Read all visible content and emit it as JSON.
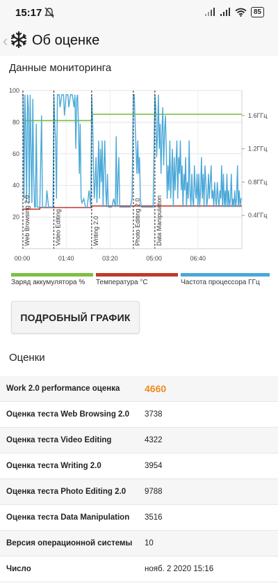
{
  "status": {
    "time": "15:17",
    "battery": "85"
  },
  "app": {
    "title": "Об оценке"
  },
  "monitoring": {
    "title": "Данные мониторинга",
    "markers": [
      "Web Browsing 2.0",
      "Video Editing",
      "Writing 2.0",
      "Photo Editing 2.0",
      "Data Manipulation"
    ]
  },
  "chart_data": {
    "type": "line",
    "x_label_ticks": [
      "00:00",
      "01:40",
      "03:20",
      "05:00",
      "06:40"
    ],
    "y_left_ticks": [
      "20",
      "40",
      "60",
      "80",
      "100"
    ],
    "y_right_ticks": [
      "0.4ГГц",
      "0.8ГГц",
      "1.2ГГц",
      "1.6ГГц"
    ],
    "y_left_range": [
      0,
      100
    ],
    "y_right_range": [
      0,
      1.9
    ],
    "x_range_seconds": [
      0,
      500
    ],
    "grid": true,
    "legend_position": "bottom",
    "markers_seconds": [
      0,
      72,
      158,
      253,
      302
    ],
    "series": [
      {
        "name": "Заряд аккумулятора %",
        "color": "#7cc142",
        "axis": "left",
        "points": [
          [
            0,
            81
          ],
          [
            158,
            81
          ],
          [
            158,
            85
          ],
          [
            500,
            85
          ]
        ]
      },
      {
        "name": "Температура °C",
        "color": "#c0392b",
        "axis": "left",
        "points": [
          [
            0,
            25
          ],
          [
            40,
            25
          ],
          [
            40,
            26
          ],
          [
            158,
            26
          ],
          [
            158,
            27
          ],
          [
            500,
            27
          ]
        ]
      },
      {
        "name": "Частота процессора ГГц",
        "color": "#4aa8d8",
        "axis": "right",
        "points": [
          [
            0,
            1.85
          ],
          [
            2,
            1.85
          ],
          [
            4,
            0.6
          ],
          [
            6,
            1.85
          ],
          [
            8,
            1.4
          ],
          [
            10,
            0.55
          ],
          [
            12,
            1.85
          ],
          [
            14,
            1.7
          ],
          [
            16,
            0.55
          ],
          [
            18,
            1.85
          ],
          [
            20,
            1.2
          ],
          [
            22,
            0.55
          ],
          [
            24,
            1.8
          ],
          [
            26,
            0.9
          ],
          [
            28,
            0.5
          ],
          [
            30,
            0.5
          ],
          [
            32,
            1.5
          ],
          [
            34,
            0.5
          ],
          [
            36,
            0.5
          ],
          [
            40,
            0.5
          ],
          [
            44,
            1.6
          ],
          [
            46,
            0.5
          ],
          [
            50,
            0.5
          ],
          [
            54,
            0.5
          ],
          [
            56,
            0.7
          ],
          [
            60,
            0.5
          ],
          [
            66,
            0.5
          ],
          [
            70,
            0.5
          ],
          [
            72,
            1.85
          ],
          [
            74,
            1.5
          ],
          [
            76,
            1.3
          ],
          [
            78,
            0.6
          ],
          [
            80,
            1.85
          ],
          [
            84,
            1.85
          ],
          [
            86,
            1.7
          ],
          [
            90,
            1.85
          ],
          [
            94,
            1.85
          ],
          [
            96,
            1.6
          ],
          [
            100,
            1.85
          ],
          [
            104,
            1.85
          ],
          [
            106,
            1.7
          ],
          [
            110,
            1.85
          ],
          [
            114,
            1.85
          ],
          [
            118,
            1.7
          ],
          [
            120,
            1.85
          ],
          [
            122,
            1.2
          ],
          [
            124,
            1.8
          ],
          [
            126,
            1.85
          ],
          [
            128,
            1.5
          ],
          [
            130,
            0.9
          ],
          [
            132,
            1.5
          ],
          [
            134,
            0.6
          ],
          [
            136,
            0.55
          ],
          [
            140,
            0.6
          ],
          [
            144,
            0.5
          ],
          [
            148,
            0.5
          ],
          [
            152,
            0.7
          ],
          [
            156,
            0.5
          ],
          [
            158,
            1.85
          ],
          [
            160,
            1.6
          ],
          [
            162,
            1.0
          ],
          [
            164,
            0.6
          ],
          [
            166,
            0.8
          ],
          [
            168,
            1.1
          ],
          [
            170,
            0.55
          ],
          [
            172,
            0.9
          ],
          [
            174,
            1.3
          ],
          [
            176,
            0.6
          ],
          [
            178,
            1.2
          ],
          [
            180,
            0.8
          ],
          [
            182,
            1.3
          ],
          [
            184,
            0.5
          ],
          [
            186,
            1.0
          ],
          [
            188,
            1.3
          ],
          [
            190,
            0.7
          ],
          [
            192,
            0.5
          ],
          [
            194,
            0.9
          ],
          [
            196,
            0.5
          ],
          [
            200,
            0.5
          ],
          [
            204,
            0.5
          ],
          [
            208,
            0.6
          ],
          [
            212,
            0.5
          ],
          [
            214,
            1.35
          ],
          [
            216,
            0.5
          ],
          [
            220,
            1.1
          ],
          [
            222,
            0.5
          ],
          [
            226,
            0.5
          ],
          [
            230,
            0.5
          ],
          [
            234,
            0.5
          ],
          [
            238,
            0.5
          ],
          [
            242,
            0.5
          ],
          [
            246,
            0.5
          ],
          [
            250,
            0.6
          ],
          [
            253,
            1.85
          ],
          [
            255,
            1.85
          ],
          [
            257,
            1.5
          ],
          [
            259,
            1.2
          ],
          [
            261,
            0.9
          ],
          [
            263,
            1.3
          ],
          [
            265,
            0.9
          ],
          [
            267,
            1.1
          ],
          [
            269,
            0.6
          ],
          [
            271,
            0.5
          ],
          [
            274,
            0.5
          ],
          [
            278,
            0.5
          ],
          [
            282,
            0.5
          ],
          [
            286,
            0.5
          ],
          [
            290,
            0.5
          ],
          [
            294,
            0.5
          ],
          [
            298,
            0.5
          ],
          [
            302,
            1.85
          ],
          [
            304,
            1.7
          ],
          [
            306,
            1.1
          ],
          [
            308,
            1.4
          ],
          [
            310,
            1.85
          ],
          [
            312,
            1.2
          ],
          [
            314,
            1.5
          ],
          [
            316,
            0.9
          ],
          [
            318,
            1.4
          ],
          [
            320,
            1.7
          ],
          [
            322,
            1.0
          ],
          [
            324,
            1.4
          ],
          [
            326,
            1.6
          ],
          [
            328,
            1.2
          ],
          [
            330,
            0.6
          ],
          [
            332,
            1.0
          ],
          [
            334,
            0.7
          ],
          [
            336,
            1.3
          ],
          [
            338,
            0.6
          ],
          [
            340,
            0.9
          ],
          [
            342,
            1.2
          ],
          [
            344,
            0.5
          ],
          [
            346,
            1.1
          ],
          [
            348,
            0.7
          ],
          [
            350,
            1.0
          ],
          [
            352,
            1.3
          ],
          [
            354,
            0.6
          ],
          [
            356,
            1.1
          ],
          [
            358,
            0.9
          ],
          [
            360,
            1.3
          ],
          [
            362,
            0.7
          ],
          [
            364,
            1.0
          ],
          [
            366,
            0.5
          ],
          [
            368,
            0.9
          ],
          [
            370,
            0.7
          ],
          [
            372,
            1.1
          ],
          [
            374,
            0.5
          ],
          [
            376,
            0.8
          ],
          [
            378,
            0.6
          ],
          [
            380,
            1.3
          ],
          [
            382,
            0.7
          ],
          [
            384,
            0.5
          ],
          [
            386,
            0.9
          ],
          [
            388,
            0.6
          ],
          [
            390,
            0.5
          ],
          [
            392,
            1.0
          ],
          [
            394,
            0.7
          ],
          [
            396,
            0.6
          ],
          [
            398,
            0.9
          ],
          [
            400,
            0.5
          ],
          [
            402,
            0.9
          ],
          [
            404,
            0.5
          ],
          [
            406,
            0.7
          ],
          [
            408,
            1.1
          ],
          [
            410,
            0.6
          ],
          [
            412,
            0.9
          ],
          [
            414,
            0.5
          ],
          [
            416,
            1.0
          ],
          [
            418,
            0.8
          ],
          [
            420,
            0.5
          ],
          [
            422,
            0.6
          ],
          [
            424,
            0.9
          ],
          [
            426,
            0.6
          ],
          [
            428,
            0.8
          ],
          [
            430,
            1.0
          ],
          [
            432,
            0.6
          ],
          [
            434,
            0.7
          ],
          [
            436,
            0.5
          ],
          [
            438,
            0.8
          ],
          [
            440,
            0.6
          ],
          [
            442,
            0.5
          ],
          [
            444,
            0.8
          ],
          [
            446,
            0.6
          ],
          [
            448,
            0.5
          ],
          [
            450,
            0.7
          ],
          [
            452,
            0.6
          ],
          [
            454,
            1.0
          ],
          [
            456,
            0.5
          ],
          [
            458,
            0.9
          ],
          [
            460,
            0.5
          ],
          [
            462,
            0.7
          ],
          [
            464,
            0.5
          ],
          [
            466,
            0.9
          ],
          [
            468,
            0.5
          ],
          [
            470,
            0.7
          ],
          [
            472,
            0.5
          ],
          [
            474,
            0.6
          ],
          [
            476,
            0.9
          ],
          [
            478,
            0.5
          ],
          [
            480,
            0.6
          ],
          [
            482,
            0.5
          ],
          [
            484,
            0.7
          ],
          [
            486,
            0.5
          ],
          [
            488,
            0.6
          ],
          [
            490,
            1.0
          ],
          [
            492,
            0.5
          ],
          [
            494,
            0.7
          ],
          [
            496,
            0.5
          ],
          [
            498,
            0.6
          ],
          [
            500,
            0.6
          ]
        ]
      }
    ]
  },
  "legend": [
    {
      "label": "Заряд аккумулятора %",
      "color": "#7cc142"
    },
    {
      "label": "Температура °C",
      "color": "#c0392b"
    },
    {
      "label": "Частота процессора ГГц",
      "color": "#4aa8d8"
    }
  ],
  "detail_button": "ПОДРОБНЫЙ ГРАФИК",
  "scores_title": "Оценки",
  "scores": [
    {
      "label": "Work 2.0 performance оценка",
      "value": "4660"
    },
    {
      "label": "Оценка теста Web Browsing 2.0",
      "value": "3738"
    },
    {
      "label": "Оценка теста Video Editing",
      "value": "4322"
    },
    {
      "label": "Оценка теста Writing 2.0",
      "value": "3954"
    },
    {
      "label": "Оценка теста Photo Editing 2.0",
      "value": "9788"
    },
    {
      "label": "Оценка теста Data Manipulation",
      "value": "3516"
    },
    {
      "label": "Версия операционной системы",
      "value": "10"
    },
    {
      "label": "Число",
      "value": "нояб. 2 2020 15:16"
    }
  ]
}
